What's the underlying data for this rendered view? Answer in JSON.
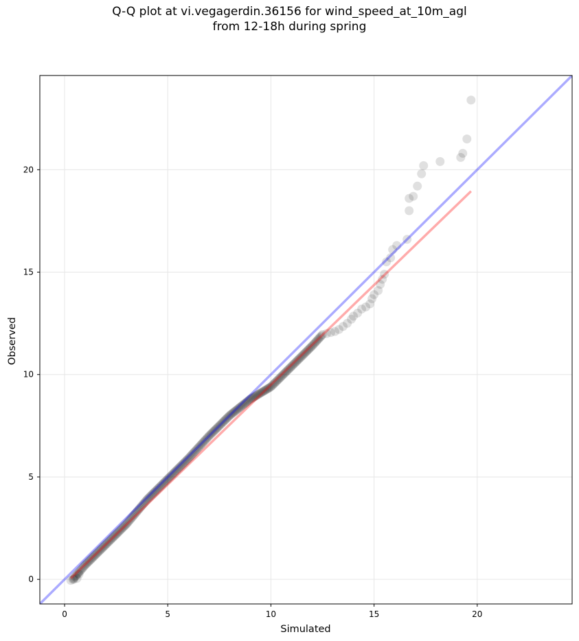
{
  "title_lines": [
    "Q-Q plot at vi.vegagerdin.36156 for wind_speed_at_10m_agl",
    "from 12-18h during spring"
  ],
  "chart_data": {
    "type": "scatter",
    "title": "Q-Q plot at vi.vegagerdin.36156 for wind_speed_at_10m_agl from 12-18h during spring",
    "xlabel": "Simulated",
    "ylabel": "Observed",
    "xlim": [
      -1.2,
      24.6
    ],
    "ylim": [
      -1.2,
      24.6
    ],
    "xticks": [
      0,
      5,
      10,
      15,
      20
    ],
    "yticks": [
      0,
      5,
      10,
      15,
      20
    ],
    "grid": true,
    "legend": "none",
    "reference_line": {
      "description": "1:1 line",
      "color": "#0000ff",
      "x": [
        -1.2,
        24.6
      ],
      "y": [
        -1.2,
        24.6
      ]
    },
    "fit_line": {
      "description": "fitted line",
      "color": "#ff0000",
      "x": [
        0.3,
        19.7
      ],
      "y": [
        0.05,
        18.95
      ]
    },
    "dense_points": {
      "from": [
        0.4,
        0.0
      ],
      "to": [
        12.5,
        11.95
      ],
      "count": 240,
      "waypoints": [
        [
          0.4,
          0.0
        ],
        [
          1.0,
          0.7
        ],
        [
          2.0,
          1.7
        ],
        [
          3.0,
          2.7
        ],
        [
          4.0,
          3.9
        ],
        [
          5.0,
          4.9
        ],
        [
          6.0,
          5.9
        ],
        [
          7.0,
          7.0
        ],
        [
          8.0,
          8.0
        ],
        [
          9.0,
          8.8
        ],
        [
          10.0,
          9.4
        ],
        [
          11.0,
          10.4
        ],
        [
          12.0,
          11.4
        ],
        [
          12.5,
          11.95
        ]
      ]
    },
    "points": [
      [
        0.3,
        -0.05
      ],
      [
        0.45,
        0.0
      ],
      [
        0.6,
        0.05
      ],
      [
        0.7,
        0.25
      ],
      [
        12.7,
        12.0
      ],
      [
        12.9,
        12.05
      ],
      [
        13.1,
        12.1
      ],
      [
        13.3,
        12.2
      ],
      [
        13.5,
        12.35
      ],
      [
        13.7,
        12.5
      ],
      [
        13.9,
        12.7
      ],
      [
        14.0,
        12.85
      ],
      [
        14.2,
        13.0
      ],
      [
        14.4,
        13.2
      ],
      [
        14.6,
        13.3
      ],
      [
        14.8,
        13.45
      ],
      [
        14.9,
        13.7
      ],
      [
        15.0,
        13.9
      ],
      [
        15.2,
        14.1
      ],
      [
        15.3,
        14.4
      ],
      [
        15.4,
        14.65
      ],
      [
        15.5,
        14.9
      ],
      [
        15.6,
        15.5
      ],
      [
        15.8,
        15.7
      ],
      [
        15.9,
        16.1
      ],
      [
        16.1,
        16.3
      ],
      [
        16.6,
        16.6
      ],
      [
        16.7,
        18.0
      ],
      [
        16.7,
        18.6
      ],
      [
        16.9,
        18.7
      ],
      [
        17.1,
        19.2
      ],
      [
        17.3,
        19.8
      ],
      [
        17.4,
        20.2
      ],
      [
        18.2,
        20.4
      ],
      [
        19.2,
        20.6
      ],
      [
        19.3,
        20.8
      ],
      [
        19.5,
        21.5
      ],
      [
        19.7,
        23.4
      ]
    ]
  }
}
